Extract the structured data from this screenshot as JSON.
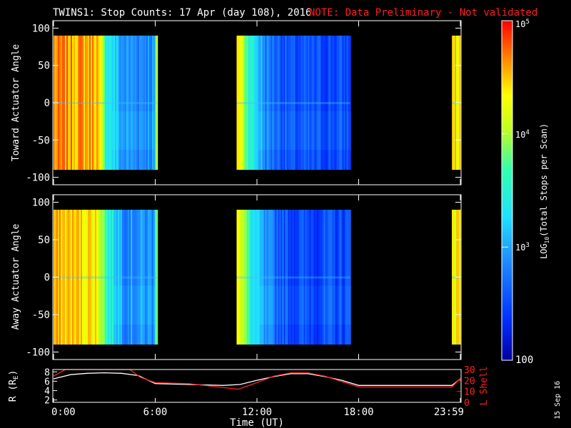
{
  "header": {
    "title": "TWINS1: Stop Counts: 17 Apr (day 108), 2016",
    "note": "NOTE: Data Preliminary - Not validated"
  },
  "date_stamp": "15 Sep 16",
  "colors": {
    "background": "#000000",
    "axes": "#ffffff",
    "note": "#ff2020",
    "r_line": "#ffffff",
    "l_line": "#ff2020"
  },
  "colorbar": {
    "label": "LOG10(Total Stops per Scan)",
    "label_main": "LOG",
    "label_sub": "10",
    "label_rest": "(Total Stops per Scan)",
    "ticks": [
      "100",
      "10^3",
      "10^4",
      "10^5"
    ],
    "tick_text": {
      "t100": "100",
      "t3b": "10",
      "t3e": "3",
      "t4b": "10",
      "t4e": "4",
      "t5b": "10",
      "t5e": "5"
    },
    "log_range": [
      2,
      5
    ]
  },
  "chart_data": [
    {
      "type": "heatmap",
      "name": "toward",
      "ylabel": "Toward Actuator Angle",
      "ylim": [
        -110,
        110
      ],
      "yticks": [
        "100",
        "50",
        "0",
        "-50",
        "-100"
      ],
      "ytick_values": [
        100,
        50,
        0,
        -50,
        -100
      ],
      "data_ylim": [
        -90,
        90
      ],
      "xlim_hours": [
        0,
        24
      ],
      "data_segments_hours": [
        [
          0.0,
          6.1
        ],
        [
          10.8,
          17.5
        ],
        [
          23.5,
          24.0
        ]
      ],
      "log_counts_profile": [
        {
          "t": 0.0,
          "v": 4.6
        },
        {
          "t": 2.5,
          "v": 4.6
        },
        {
          "t": 3.0,
          "v": 3.6
        },
        {
          "t": 4.0,
          "v": 2.9
        },
        {
          "t": 5.9,
          "v": 2.9
        },
        {
          "t": 6.1,
          "v": 4.3
        },
        {
          "t": 10.8,
          "v": 4.5
        },
        {
          "t": 11.6,
          "v": 3.5
        },
        {
          "t": 12.5,
          "v": 2.8
        },
        {
          "t": 14.0,
          "v": 2.5
        },
        {
          "t": 17.5,
          "v": 2.5
        },
        {
          "t": 23.5,
          "v": 4.4
        },
        {
          "t": 24.0,
          "v": 4.4
        }
      ]
    },
    {
      "type": "heatmap",
      "name": "away",
      "ylabel": "Away Actuator Angle",
      "ylim": [
        -110,
        110
      ],
      "yticks": [
        "100",
        "50",
        "0",
        "-50",
        "-100"
      ],
      "ytick_values": [
        100,
        50,
        0,
        -50,
        -100
      ],
      "data_ylim": [
        -90,
        90
      ],
      "xlim_hours": [
        0,
        24
      ],
      "data_segments_hours": [
        [
          0.0,
          6.1
        ],
        [
          10.8,
          17.5
        ],
        [
          23.5,
          24.0
        ]
      ],
      "log_counts_profile": [
        {
          "t": 0.0,
          "v": 4.5
        },
        {
          "t": 2.5,
          "v": 4.4
        },
        {
          "t": 3.2,
          "v": 3.5
        },
        {
          "t": 4.2,
          "v": 2.9
        },
        {
          "t": 5.9,
          "v": 2.9
        },
        {
          "t": 6.1,
          "v": 4.3
        },
        {
          "t": 10.8,
          "v": 4.5
        },
        {
          "t": 11.6,
          "v": 3.4
        },
        {
          "t": 12.5,
          "v": 2.8
        },
        {
          "t": 14.0,
          "v": 2.5
        },
        {
          "t": 17.5,
          "v": 2.5
        },
        {
          "t": 23.5,
          "v": 4.4
        },
        {
          "t": 24.0,
          "v": 4.4
        }
      ]
    },
    {
      "type": "line",
      "name": "ephemeris",
      "xlabel": "Time (UT)",
      "xticks": [
        "0:00",
        "6:00",
        "12:00",
        "18:00",
        "23:59"
      ],
      "xtick_hours": [
        0,
        6,
        12,
        18,
        24
      ],
      "left_axis": {
        "label": "R (RE)",
        "label_main": "R (R",
        "label_sub": "E",
        "label_end": ")",
        "ylim": [
          1.5,
          8.5
        ],
        "ticks": [
          "8",
          "6",
          "4",
          "2"
        ],
        "tick_values": [
          8,
          6,
          4,
          2
        ]
      },
      "right_axis": {
        "label": "L Shell",
        "ylim": [
          0,
          30
        ],
        "ticks": [
          "30",
          "20",
          "10",
          "0"
        ],
        "tick_values": [
          30,
          20,
          10,
          0
        ]
      },
      "series": [
        {
          "name": "R",
          "axis": "left",
          "x": [
            0,
            1,
            2,
            3,
            4,
            5,
            6,
            8,
            10,
            11,
            12,
            13,
            14,
            15,
            16,
            17,
            18,
            20,
            22,
            23.5,
            24
          ],
          "y": [
            6.5,
            7.4,
            7.7,
            7.8,
            7.7,
            7.2,
            5.5,
            5.3,
            5.1,
            5.3,
            6.2,
            7.0,
            7.6,
            7.6,
            7.0,
            6.2,
            5.1,
            5.1,
            5.1,
            5.1,
            6.5
          ]
        },
        {
          "name": "L Shell",
          "axis": "right",
          "x": [
            0,
            0.7,
            4.5,
            5.1,
            6,
            8,
            10.9,
            12,
            13,
            14,
            15,
            16,
            17,
            18,
            20,
            22,
            23.5,
            24
          ],
          "y": [
            24,
            30,
            30,
            23,
            18,
            17,
            12,
            18,
            24,
            27,
            27,
            24,
            19,
            14,
            14,
            14,
            14,
            22
          ]
        }
      ]
    }
  ]
}
